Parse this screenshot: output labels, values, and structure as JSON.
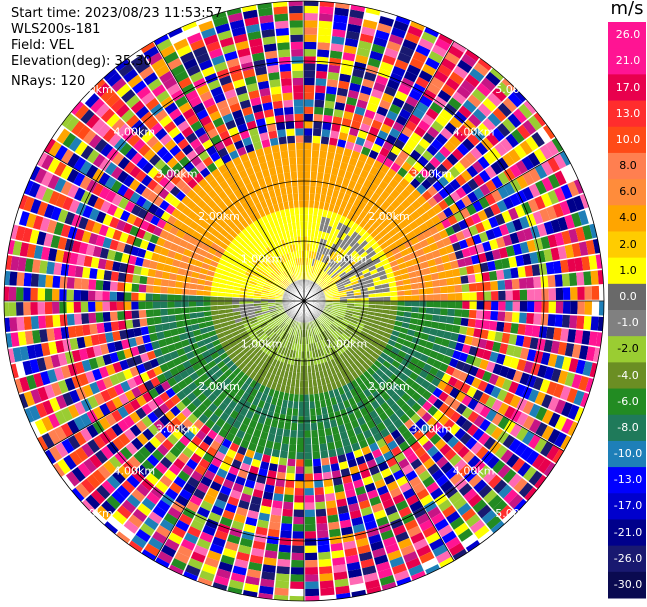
{
  "header": {
    "start_time": "Start time: 2023/08/23 11:53:57",
    "instrument": "WLS200s-181",
    "field": "Field: VEL",
    "elevation": "Elevation(deg): 35.30",
    "nrays": "NRays: 120"
  },
  "colorbar": {
    "unit": "m/s",
    "ticks": [
      "26.0",
      "21.0",
      "17.0",
      "13.0",
      "10.0",
      "8.0",
      "6.0",
      "4.0",
      "2.0",
      "1.0",
      "0.0",
      "-1.0",
      "-2.0",
      "-4.0",
      "-6.0",
      "-8.0",
      "-10.0",
      "-13.0",
      "-17.0",
      "-21.0",
      "-26.0",
      "-30.0"
    ],
    "colors": [
      "#ff1493",
      "#ff1493",
      "#e8004d",
      "#ff2d2d",
      "#ff4a17",
      "#ff7f50",
      "#ff8c3b",
      "#ffa500",
      "#ffcc00",
      "#ffff00",
      "#696969",
      "#808080",
      "#9acd32",
      "#6b8e23",
      "#228b22",
      "#1f7a5a",
      "#1e7fb8",
      "#0000ff",
      "#0000cd",
      "#00008b",
      "#191970",
      "#0a0a50"
    ]
  },
  "chart_data": {
    "type": "ppi",
    "field": "VEL",
    "units": "m/s",
    "elevation_deg": 35.3,
    "nrays": 120,
    "range_rings_km": [
      1.0,
      2.0,
      3.0,
      4.0,
      5.0
    ],
    "range_ring_labels": [
      "1.00km",
      "2.00km",
      "3.00km",
      "4.00km",
      "5.00km"
    ],
    "vmin": -30.0,
    "vmax": 30.0,
    "zones": [
      {
        "range_km": [
          0.0,
          2.5
        ],
        "sector": "north",
        "velocity_ms": 2.0
      },
      {
        "range_km": [
          1.5,
          2.5
        ],
        "sector": "north",
        "velocity_ms": 6.0
      },
      {
        "range_km": [
          0.0,
          2.5
        ],
        "sector": "south",
        "velocity_ms": -4.0
      },
      {
        "range_km": [
          0.0,
          1.0
        ],
        "sector": "center",
        "velocity_ms": 0.0
      },
      {
        "range_km": [
          2.5,
          5.0
        ],
        "sector": "all",
        "velocity_ms": "noise"
      }
    ]
  }
}
